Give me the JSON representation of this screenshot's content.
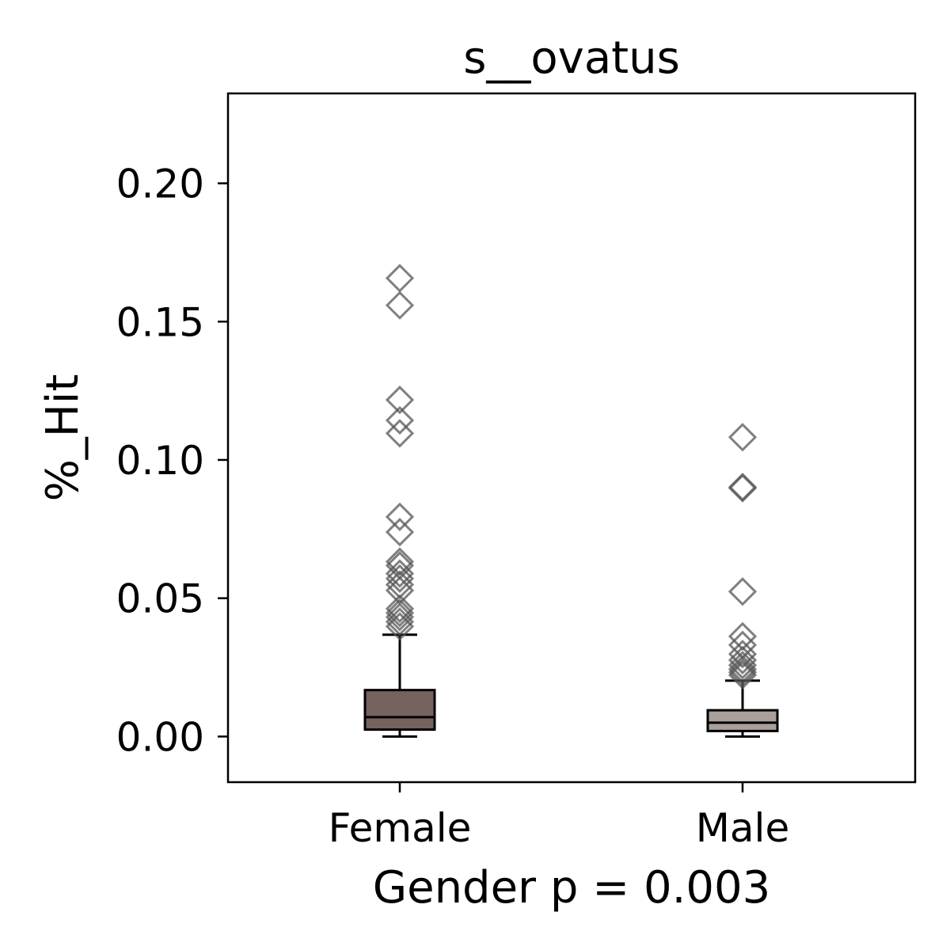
{
  "chart_data": {
    "type": "box",
    "title": "s__ovatus",
    "xlabel": "Gender p = 0.003",
    "ylabel": "%_Hit",
    "ylim": [
      -0.0165,
      0.2325
    ],
    "yticks": [
      0.0,
      0.05,
      0.1,
      0.15,
      0.2
    ],
    "ytick_labels": [
      "0.00",
      "0.05",
      "0.10",
      "0.15",
      "0.20"
    ],
    "grid": false,
    "categories": [
      "Female",
      "Male"
    ],
    "colors": [
      "#76625f",
      "#aaa09b"
    ],
    "outlier_color": "#555555",
    "boxes": [
      {
        "name": "Female",
        "whislo": 0.0,
        "q1": 0.0025,
        "med": 0.007,
        "q3": 0.0168,
        "whishi": 0.0368,
        "outliers": [
          0.1657,
          0.1559,
          0.1217,
          0.1143,
          0.1096,
          0.0794,
          0.0739,
          0.0632,
          0.0618,
          0.0589,
          0.0571,
          0.0549,
          0.0528,
          0.0462,
          0.0447,
          0.0432,
          0.0415,
          0.0398
        ]
      },
      {
        "name": "Male",
        "whislo": 0.0,
        "q1": 0.002,
        "med": 0.005,
        "q3": 0.0095,
        "whishi": 0.0202,
        "outliers": [
          0.1082,
          0.0902,
          0.0898,
          0.0524,
          0.0362,
          0.0331,
          0.0298,
          0.0276,
          0.0258,
          0.0243,
          0.0232,
          0.0222
        ]
      }
    ]
  }
}
